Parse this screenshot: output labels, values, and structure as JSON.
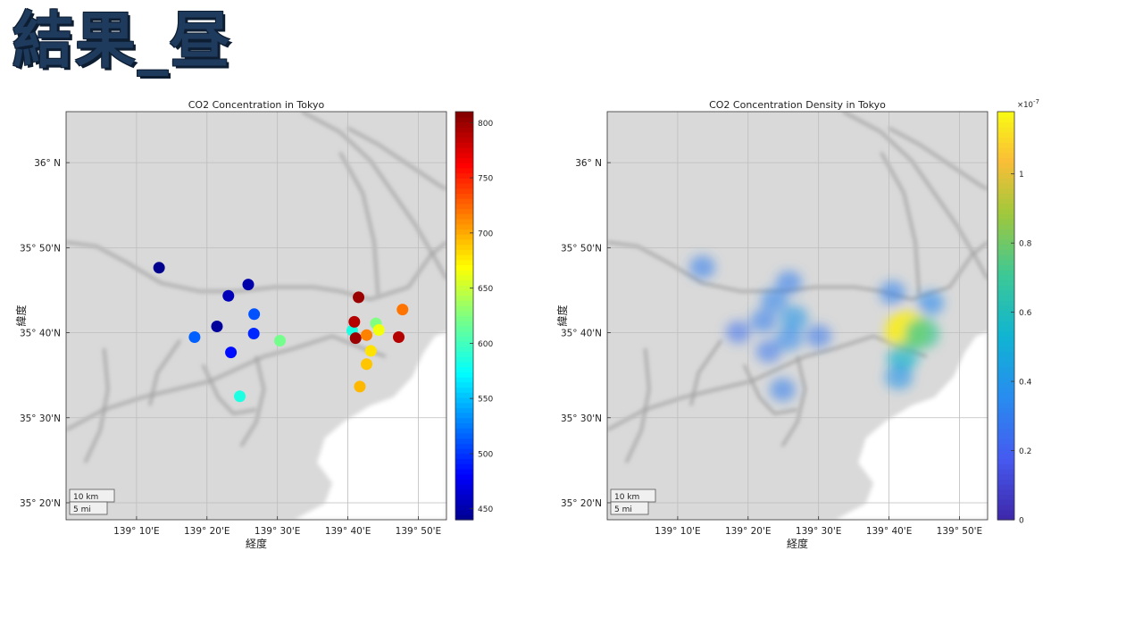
{
  "slide_title": "結果_昼",
  "colors": {
    "land": "#d9d9d9",
    "sea": "#ffffff",
    "road": "#a3a3a3",
    "frame": "#333333"
  },
  "chart_data": [
    {
      "type": "scatter",
      "title": "CO2 Concentration in Tokyo",
      "xlabel": "経度",
      "ylabel": "緯度",
      "xlim": [
        139.0,
        139.9
      ],
      "ylim": [
        35.3,
        36.1
      ],
      "xticks": [
        139.1667,
        139.3333,
        139.5,
        139.6667,
        139.8333
      ],
      "xtick_labels": [
        "139° 10'E",
        "139° 20'E",
        "139° 30'E",
        "139° 40'E",
        "139° 50'E"
      ],
      "yticks": [
        35.3333,
        35.5,
        35.6667,
        35.8333,
        36.0
      ],
      "ytick_labels": [
        "35° 20'N",
        "35° 30'N",
        "35° 40'N",
        "35° 50'N",
        "36°  N"
      ],
      "grid": true,
      "colormap": "jet",
      "clim": [
        440,
        810
      ],
      "colorbar_ticks": [
        450,
        500,
        550,
        600,
        650,
        700,
        750,
        800
      ],
      "colorbar_labels": [
        "450",
        "500",
        "550",
        "600",
        "650",
        "700",
        "750",
        "800"
      ],
      "scalebar": [
        "10 km",
        "5 mi"
      ],
      "points": [
        {
          "x": 139.22,
          "y": 35.794,
          "value": 440
        },
        {
          "x": 139.304,
          "y": 35.658,
          "value": 515
        },
        {
          "x": 139.357,
          "y": 35.679,
          "value": 445
        },
        {
          "x": 139.384,
          "y": 35.739,
          "value": 455
        },
        {
          "x": 139.431,
          "y": 35.761,
          "value": 450
        },
        {
          "x": 139.445,
          "y": 35.703,
          "value": 510
        },
        {
          "x": 139.444,
          "y": 35.665,
          "value": 495
        },
        {
          "x": 139.39,
          "y": 35.628,
          "value": 485
        },
        {
          "x": 139.411,
          "y": 35.542,
          "value": 585
        },
        {
          "x": 139.506,
          "y": 35.651,
          "value": 620
        },
        {
          "x": 139.677,
          "y": 35.671,
          "value": 585
        },
        {
          "x": 139.682,
          "y": 35.688,
          "value": 790
        },
        {
          "x": 139.685,
          "y": 35.656,
          "value": 800
        },
        {
          "x": 139.692,
          "y": 35.736,
          "value": 800
        },
        {
          "x": 139.711,
          "y": 35.662,
          "value": 715
        },
        {
          "x": 139.721,
          "y": 35.631,
          "value": 680
        },
        {
          "x": 139.711,
          "y": 35.605,
          "value": 690
        },
        {
          "x": 139.695,
          "y": 35.561,
          "value": 695
        },
        {
          "x": 139.733,
          "y": 35.685,
          "value": 625
        },
        {
          "x": 139.74,
          "y": 35.672,
          "value": 665
        },
        {
          "x": 139.787,
          "y": 35.658,
          "value": 790
        },
        {
          "x": 139.796,
          "y": 35.712,
          "value": 720
        }
      ]
    },
    {
      "type": "heatmap",
      "title": "CO2 Concentration Density in Tokyo",
      "xlabel": "経度",
      "ylabel": "緯度",
      "xlim": [
        139.0,
        139.9
      ],
      "ylim": [
        35.3,
        36.1
      ],
      "xticks": [
        139.1667,
        139.3333,
        139.5,
        139.6667,
        139.8333
      ],
      "xtick_labels": [
        "139° 10'E",
        "139° 20'E",
        "139° 30'E",
        "139° 40'E",
        "139° 50'E"
      ],
      "yticks": [
        35.3333,
        35.5,
        35.6667,
        35.8333,
        36.0
      ],
      "ytick_labels": [
        "35° 20'N",
        "35° 30'N",
        "35° 40'N",
        "35° 50'N",
        "36°  N"
      ],
      "grid": true,
      "colormap": "parula",
      "clim": [
        0,
        1.18
      ],
      "colorbar_ticks": [
        0,
        0.2,
        0.4,
        0.6,
        0.8,
        1
      ],
      "colorbar_labels": [
        "0",
        "0.2",
        "0.4",
        "0.6",
        "0.8",
        "1"
      ],
      "colorbar_exponent": "-7",
      "scalebar": [
        "10 km",
        "5 mi"
      ],
      "blobs": [
        {
          "x": 139.225,
          "y": 35.795,
          "value": 0.3
        },
        {
          "x": 139.31,
          "y": 35.668,
          "value": 0.26
        },
        {
          "x": 139.37,
          "y": 35.69,
          "value": 0.3
        },
        {
          "x": 139.395,
          "y": 35.73,
          "value": 0.33
        },
        {
          "x": 139.43,
          "y": 35.765,
          "value": 0.3
        },
        {
          "x": 139.442,
          "y": 35.695,
          "value": 0.4
        },
        {
          "x": 139.43,
          "y": 35.655,
          "value": 0.34
        },
        {
          "x": 139.382,
          "y": 35.63,
          "value": 0.27
        },
        {
          "x": 139.415,
          "y": 35.555,
          "value": 0.3
        },
        {
          "x": 139.5,
          "y": 35.66,
          "value": 0.28
        },
        {
          "x": 139.675,
          "y": 35.745,
          "value": 0.32
        },
        {
          "x": 139.765,
          "y": 35.725,
          "value": 0.35
        },
        {
          "x": 139.71,
          "y": 35.67,
          "value": 1.15
        },
        {
          "x": 139.745,
          "y": 35.665,
          "value": 0.7
        },
        {
          "x": 139.7,
          "y": 35.62,
          "value": 0.55
        },
        {
          "x": 139.69,
          "y": 35.58,
          "value": 0.4
        }
      ]
    }
  ]
}
